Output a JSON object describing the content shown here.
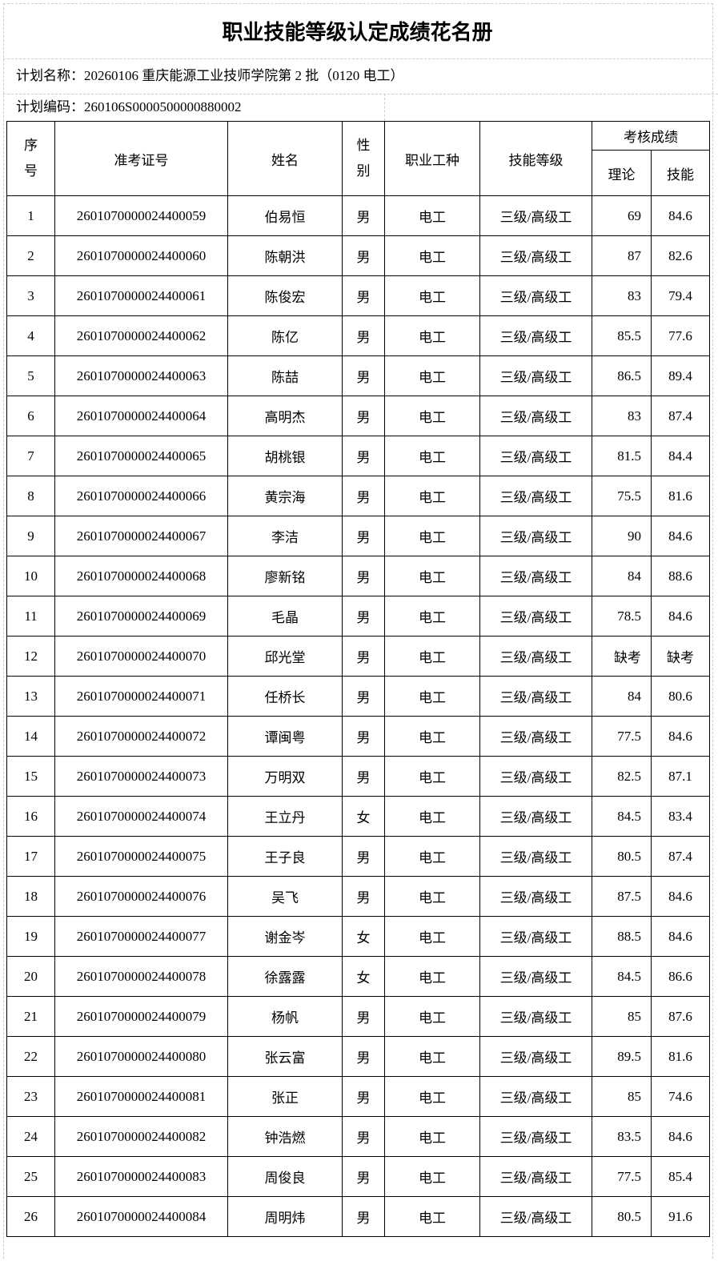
{
  "title": "职业技能等级认定成绩花名册",
  "plan_name": "计划名称：20260106 重庆能源工业技师学院第 2 批（0120 电工）",
  "plan_code": "计划编码：260106S000050000088000​2",
  "headers": {
    "index": "序号",
    "ticket": "准考证号",
    "name": "姓名",
    "gender": "性别",
    "occupation": "职业工种",
    "level": "技能等级",
    "scores": "考核成绩",
    "theory": "理论",
    "skill": "技能"
  },
  "rows": [
    [
      "1",
      "2601070000024400059",
      "伯易恒",
      "男",
      "电工",
      "三级/高级工",
      "69",
      "84.6"
    ],
    [
      "2",
      "2601070000024400060",
      "陈朝洪",
      "男",
      "电工",
      "三级/高级工",
      "87",
      "82.6"
    ],
    [
      "3",
      "2601070000024400061",
      "陈俊宏",
      "男",
      "电工",
      "三级/高级工",
      "83",
      "79.4"
    ],
    [
      "4",
      "2601070000024400062",
      "陈亿",
      "男",
      "电工",
      "三级/高级工",
      "85.5",
      "77.6"
    ],
    [
      "5",
      "2601070000024400063",
      "陈喆",
      "男",
      "电工",
      "三级/高级工",
      "86.5",
      "89.4"
    ],
    [
      "6",
      "2601070000024400064",
      "高明杰",
      "男",
      "电工",
      "三级/高级工",
      "83",
      "87.4"
    ],
    [
      "7",
      "2601070000024400065",
      "胡桃银",
      "男",
      "电工",
      "三级/高级工",
      "81.5",
      "84.4"
    ],
    [
      "8",
      "2601070000024400066",
      "黄宗海",
      "男",
      "电工",
      "三级/高级工",
      "75.5",
      "81.6"
    ],
    [
      "9",
      "2601070000024400067",
      "李洁",
      "男",
      "电工",
      "三级/高级工",
      "90",
      "84.6"
    ],
    [
      "10",
      "2601070000024400068",
      "廖新铭",
      "男",
      "电工",
      "三级/高级工",
      "84",
      "88.6"
    ],
    [
      "11",
      "2601070000024400069",
      "毛晶",
      "男",
      "电工",
      "三级/高级工",
      "78.5",
      "84.6"
    ],
    [
      "12",
      "2601070000024400070",
      "邱光堂",
      "男",
      "电工",
      "三级/高级工",
      "缺考",
      "缺考"
    ],
    [
      "13",
      "2601070000024400071",
      "任桥长",
      "男",
      "电工",
      "三级/高级工",
      "84",
      "80.6"
    ],
    [
      "14",
      "2601070000024400072",
      "谭闽粤",
      "男",
      "电工",
      "三级/高级工",
      "77.5",
      "84.6"
    ],
    [
      "15",
      "2601070000024400073",
      "万明双",
      "男",
      "电工",
      "三级/高级工",
      "82.5",
      "87.1"
    ],
    [
      "16",
      "2601070000024400074",
      "王立丹",
      "女",
      "电工",
      "三级/高级工",
      "84.5",
      "83.4"
    ],
    [
      "17",
      "2601070000024400075",
      "王子良",
      "男",
      "电工",
      "三级/高级工",
      "80.5",
      "87.4"
    ],
    [
      "18",
      "2601070000024400076",
      "吴飞",
      "男",
      "电工",
      "三级/高级工",
      "87.5",
      "84.6"
    ],
    [
      "19",
      "2601070000024400077",
      "谢金岑",
      "女",
      "电工",
      "三级/高级工",
      "88.5",
      "84.6"
    ],
    [
      "20",
      "2601070000024400078",
      "徐露露",
      "女",
      "电工",
      "三级/高级工",
      "84.5",
      "86.6"
    ],
    [
      "21",
      "2601070000024400079",
      "杨帆",
      "男",
      "电工",
      "三级/高级工",
      "85",
      "87.6"
    ],
    [
      "22",
      "2601070000024400080",
      "张云富",
      "男",
      "电工",
      "三级/高级工",
      "89.5",
      "81.6"
    ],
    [
      "23",
      "2601070000024400081",
      "张正",
      "男",
      "电工",
      "三级/高级工",
      "85",
      "74.6"
    ],
    [
      "24",
      "2601070000024400082",
      "钟浩燃",
      "男",
      "电工",
      "三级/高级工",
      "83.5",
      "84.6"
    ],
    [
      "25",
      "2601070000024400083",
      "周俊良",
      "男",
      "电工",
      "三级/高级工",
      "77.5",
      "85.4"
    ],
    [
      "26",
      "2601070000024400084",
      "周明炜",
      "男",
      "电工",
      "三级/高级工",
      "80.5",
      "91.6"
    ]
  ]
}
